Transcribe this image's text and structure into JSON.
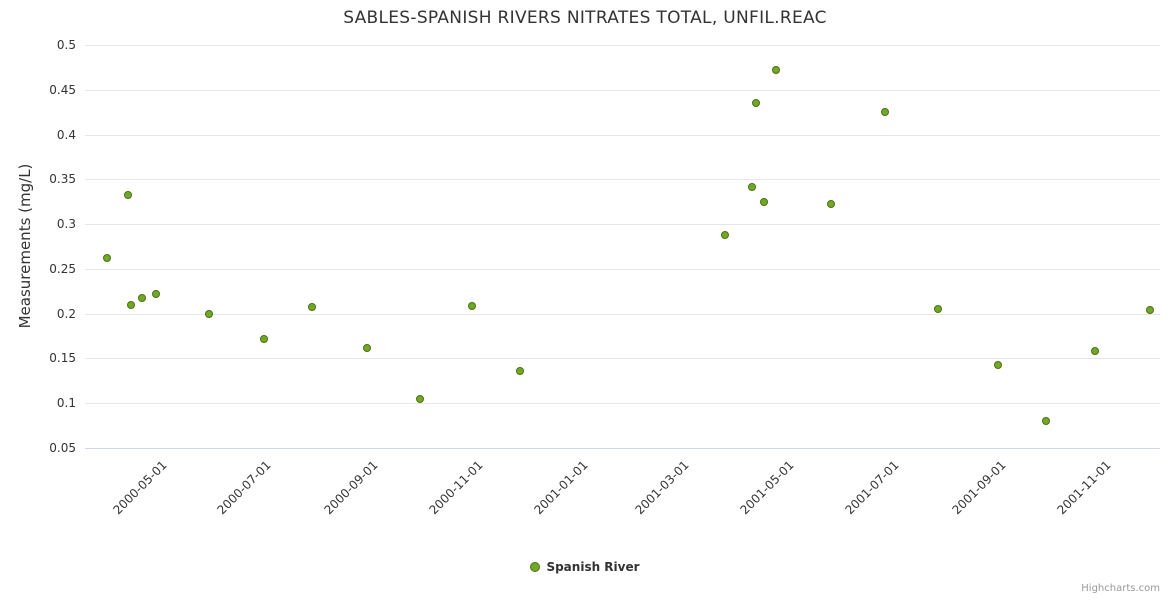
{
  "chart_data": {
    "type": "scatter",
    "title": "SABLES-SPANISH RIVERS NITRATES TOTAL, UNFIL.REAC",
    "ylabel": "Measurements (mg/L)",
    "xlabel": "",
    "ylim": [
      0.05,
      0.5
    ],
    "y_ticks": [
      0.05,
      0.1,
      0.15,
      0.2,
      0.25,
      0.3,
      0.35,
      0.4,
      0.45,
      0.5
    ],
    "x_ticks": [
      "2000-05-01",
      "2000-07-01",
      "2000-09-01",
      "2000-11-01",
      "2001-01-01",
      "2001-03-01",
      "2001-05-01",
      "2001-07-01",
      "2001-09-01",
      "2001-11-01"
    ],
    "x_range": [
      "2000-03-21",
      "2001-12-06"
    ],
    "grid": true,
    "legend_position": "bottom-center",
    "credits": "Highcharts.com",
    "series": [
      {
        "name": "Spanish River",
        "color": "#72a82a",
        "border_color": "#4a7111",
        "points": [
          [
            "2000-04-03",
            0.262
          ],
          [
            "2000-04-15",
            0.332
          ],
          [
            "2000-04-17",
            0.21
          ],
          [
            "2000-04-23",
            0.217
          ],
          [
            "2000-05-01",
            0.222
          ],
          [
            "2000-06-01",
            0.2
          ],
          [
            "2000-07-03",
            0.172
          ],
          [
            "2000-07-31",
            0.207
          ],
          [
            "2000-09-01",
            0.162
          ],
          [
            "2000-10-02",
            0.105
          ],
          [
            "2000-11-01",
            0.209
          ],
          [
            "2000-11-29",
            0.136
          ],
          [
            "2001-03-28",
            0.288
          ],
          [
            "2001-04-13",
            0.341
          ],
          [
            "2001-04-15",
            0.435
          ],
          [
            "2001-04-20",
            0.325
          ],
          [
            "2001-04-27",
            0.472
          ],
          [
            "2001-05-29",
            0.323
          ],
          [
            "2001-06-29",
            0.425
          ],
          [
            "2001-07-30",
            0.205
          ],
          [
            "2001-09-03",
            0.143
          ],
          [
            "2001-10-01",
            0.08
          ],
          [
            "2001-10-29",
            0.158
          ],
          [
            "2001-11-30",
            0.204
          ]
        ]
      }
    ]
  }
}
